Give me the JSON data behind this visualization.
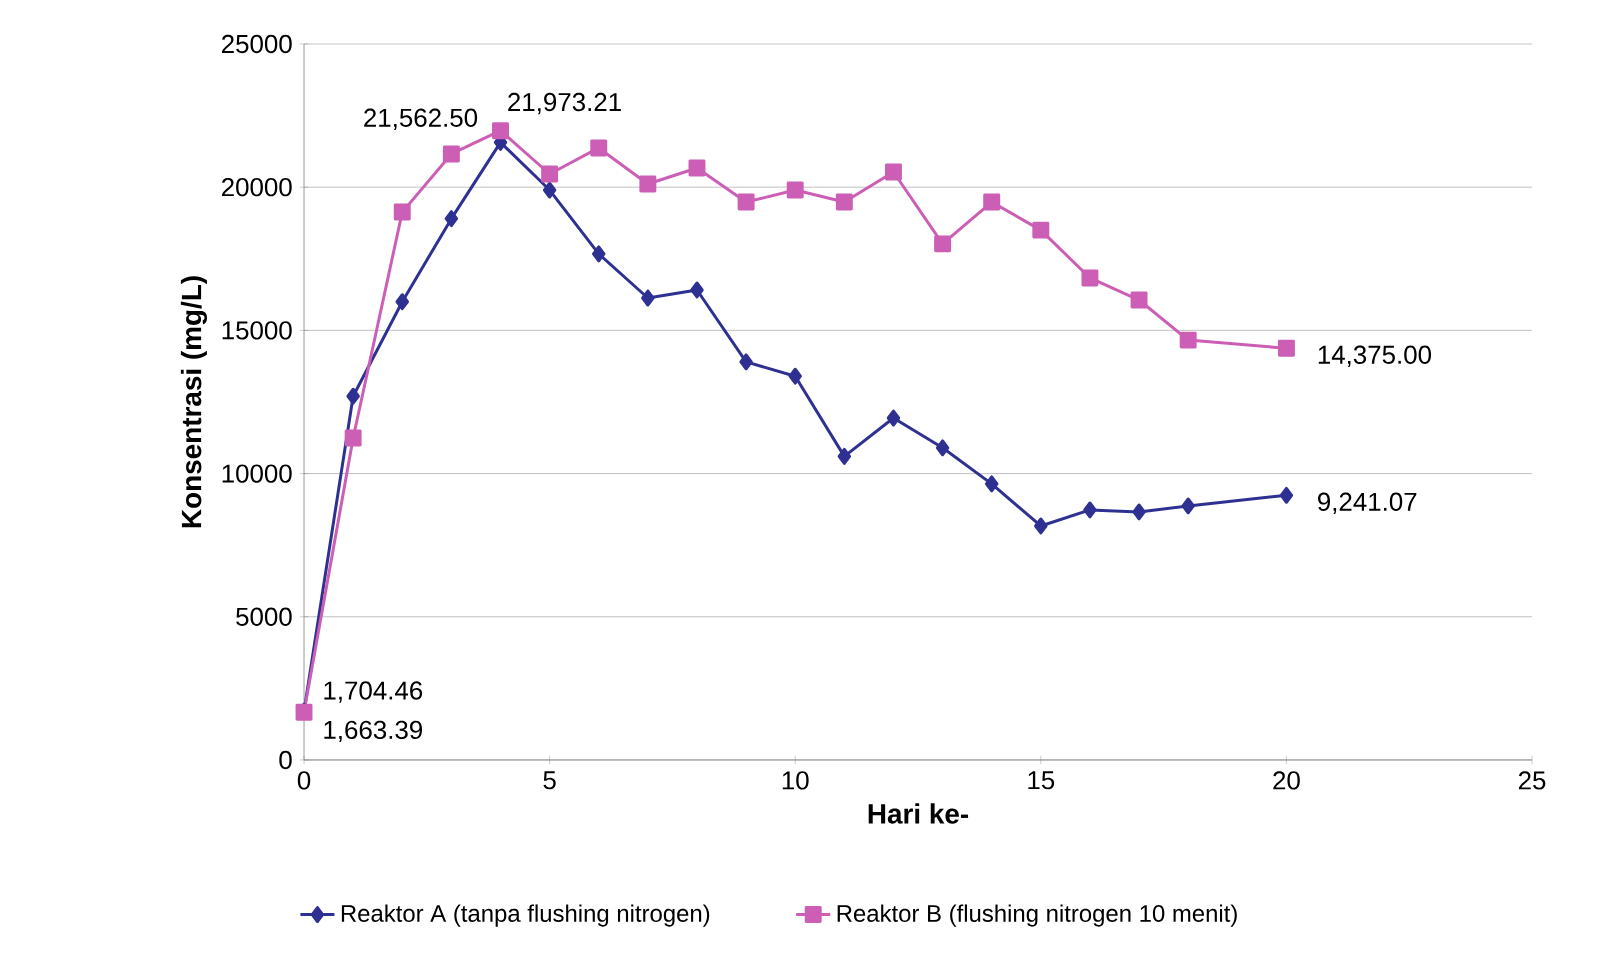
{
  "chart_data": {
    "type": "line",
    "xlabel": "Hari ke-",
    "ylabel": "Konsentrasi (mg/L)",
    "xlim": [
      0,
      25
    ],
    "xticks": [
      0,
      5,
      10,
      15,
      20,
      25
    ],
    "ylim": [
      0,
      25000
    ],
    "yticks": [
      0,
      5000,
      10000,
      15000,
      20000,
      25000
    ],
    "grid": "y",
    "legend": "bottom",
    "series": [
      {
        "name": "Reaktor A (tanpa flushing nitrogen)",
        "color": "#2e3192",
        "marker": "diamond",
        "x": [
          0,
          1,
          2,
          3,
          4,
          5,
          6,
          7,
          8,
          9,
          10,
          11,
          12,
          13,
          14,
          15,
          16,
          17,
          18,
          20
        ],
        "values": [
          1704.46,
          12700,
          16000,
          18900,
          21562.5,
          19900,
          17670,
          16130,
          16410,
          13900,
          13400,
          10600,
          11940,
          10900,
          9640,
          8170,
          8730,
          8660,
          8870,
          9241.07
        ],
        "value_labels": [
          "1,704.46",
          null,
          null,
          null,
          "21,562.50",
          null,
          null,
          null,
          null,
          null,
          null,
          null,
          null,
          null,
          null,
          null,
          null,
          null,
          null,
          "9,241.07"
        ]
      },
      {
        "name": "Reaktor B (flushing nitrogen 10 menit)",
        "color": "#cc5fb5",
        "marker": "square",
        "x": [
          0,
          1,
          2,
          3,
          4,
          5,
          6,
          7,
          8,
          9,
          10,
          11,
          12,
          13,
          14,
          15,
          16,
          17,
          18,
          20
        ],
        "values": [
          1663.39,
          11240,
          19130,
          21160,
          21973.21,
          20460,
          21370,
          20110,
          20670,
          19480,
          19900,
          19480,
          20530,
          18020,
          19480,
          18500,
          16830,
          16060,
          14660,
          14375.0
        ],
        "value_labels": [
          "1,663.39",
          null,
          null,
          null,
          "21,973.21",
          null,
          null,
          null,
          null,
          null,
          null,
          null,
          null,
          null,
          null,
          null,
          null,
          null,
          null,
          "14,375.00"
        ]
      }
    ]
  }
}
